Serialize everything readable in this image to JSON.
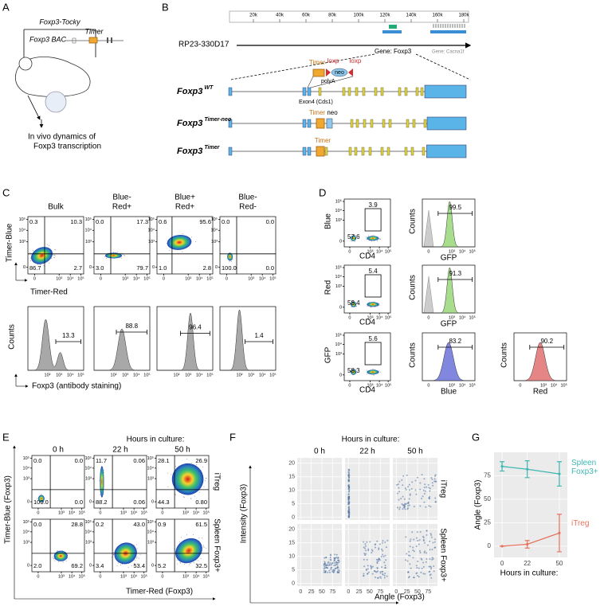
{
  "panel_a": {
    "letter": "A",
    "construct": "Foxp3-Tocky",
    "bac": "Foxp3 BAC",
    "timer": "Timer",
    "caption": [
      "In vivo dynamics of",
      "Foxp3 transcription"
    ]
  },
  "panel_b": {
    "letter": "B",
    "scale": [
      "20k",
      "40k",
      "60k",
      "80k",
      "100k",
      "120k",
      "140k",
      "160k",
      "180k"
    ],
    "clone": "RP23-330D17",
    "genes": [
      "Gene: Foxp3",
      "Gene: Cacna1f"
    ],
    "insert": {
      "timer": "Timer",
      "loxp": "loxp",
      "neo": "neo",
      "polya": "polyA",
      "exon": "Exon4 (Cds1)"
    },
    "alleles": [
      {
        "name": "Foxp3",
        "sup": "WT"
      },
      {
        "name": "Foxp3",
        "sup": "Timer-neo"
      },
      {
        "name": "Foxp3",
        "sup": "Timer"
      }
    ],
    "allele_marks": [
      {
        "timer": "Timer",
        "neo": "neo"
      },
      {
        "timer": "Timer"
      }
    ]
  },
  "flow_ticks": [
    "0",
    "10²",
    "10³",
    "10⁴",
    "10⁵"
  ],
  "panel_c": {
    "letter": "C",
    "headers": [
      [
        "Bulk"
      ],
      [
        "Blue-",
        "Red+"
      ],
      [
        "Blue+",
        "Red+"
      ],
      [
        "Blue-",
        "Red-"
      ]
    ],
    "y_label": "Timer-Blue",
    "x_label": "Timer-Red",
    "quadrants": [
      [
        "0.3",
        "10.3",
        "86.7",
        "2.7"
      ],
      [
        "0.0",
        "17.3",
        "3.0",
        "79.7"
      ],
      [
        "0.6",
        "95.6",
        "1.0",
        "2.8"
      ],
      [
        "0.0",
        "0.0",
        "100.0",
        "0.0"
      ]
    ],
    "hist_values": [
      "13.3",
      "88.8",
      "96.4",
      "1.4"
    ],
    "hist_y": "Counts",
    "hist_x": "Foxp3 (antibody staining)"
  },
  "panel_d": {
    "letter": "D",
    "x_label": "CD4",
    "rows": [
      {
        "y_label": "Blue",
        "gate": [
          "3.9",
          "57.6"
        ],
        "hists": [
          {
            "y_label": "Counts",
            "x_label": "GFP",
            "value": "99.5",
            "color": "#9ad77a"
          }
        ]
      },
      {
        "y_label": "Red",
        "gate": [
          "5.4",
          "58.4"
        ],
        "hists": [
          {
            "y_label": "Counts",
            "x_label": "GFP",
            "value": "91.3",
            "color": "#9ad77a"
          }
        ]
      },
      {
        "y_label": "GFP",
        "gate": [
          "5.6",
          "58.3"
        ],
        "hists": [
          {
            "y_label": "Counts",
            "x_label": "Blue",
            "value": "83.2",
            "color": "#6b72d8"
          },
          {
            "y_label": "Counts",
            "x_label": "Red",
            "value": "90.2",
            "color": "#e07070"
          }
        ]
      }
    ]
  },
  "panel_e": {
    "letter": "E",
    "title": "Hours in culture:",
    "times": [
      "0 h",
      "22 h",
      "50 h"
    ],
    "rows": [
      "iTreg",
      "Spleen Foxp3+"
    ],
    "y_label": "Timer-Blue (Foxp3)",
    "x_label": "Timer-Red (Foxp3)",
    "quadrants": [
      [
        [
          "0.0",
          "0.0",
          "100.0",
          "0.0"
        ],
        [
          "11.7",
          "0.06",
          "88.2",
          "0.06"
        ],
        [
          "28.1",
          "26.9",
          "44.3",
          "0.80"
        ]
      ],
      [
        [
          "0.0",
          "28.8",
          "2.0",
          "69.2"
        ],
        [
          "0.2",
          "43.0",
          "3.4",
          "53.4"
        ],
        [
          "0.9",
          "61.5",
          "5.2",
          "32.5"
        ]
      ]
    ]
  },
  "panel_f": {
    "letter": "F",
    "title": "Hours in culture:",
    "times": [
      "0 h",
      "22 h",
      "50 h"
    ],
    "rows": [
      "iTreg",
      "Spleen Foxp3+"
    ],
    "y_label": "Intensity (Foxp3)",
    "x_label": "Angle (Foxp3)",
    "xlim": [
      -8,
      97
    ],
    "ylim": [
      -1,
      22
    ],
    "xticks": [
      0,
      25,
      50,
      75
    ],
    "yticks": [
      0,
      5,
      10,
      15,
      20
    ]
  },
  "chart_data": {
    "type": "line",
    "label": "G",
    "y_label": "Angle (Foxp3)",
    "x_label": "Hours in culture:",
    "x": [
      0,
      22,
      50
    ],
    "xlim": [
      -7,
      57
    ],
    "ylim": [
      -12,
      100
    ],
    "xticks": [
      0,
      22,
      50
    ],
    "yticks": [
      0,
      25,
      50,
      75
    ],
    "grid": true,
    "series": [
      {
        "name": "Spleen Foxp3+",
        "color": "#3fb7b1",
        "values": [
          85,
          82,
          77
        ],
        "errors": [
          5,
          9,
          13
        ]
      },
      {
        "name": "iTreg",
        "color": "#e8735f",
        "values": [
          0,
          2,
          14
        ],
        "errors": [
          0,
          4,
          20
        ]
      }
    ]
  }
}
